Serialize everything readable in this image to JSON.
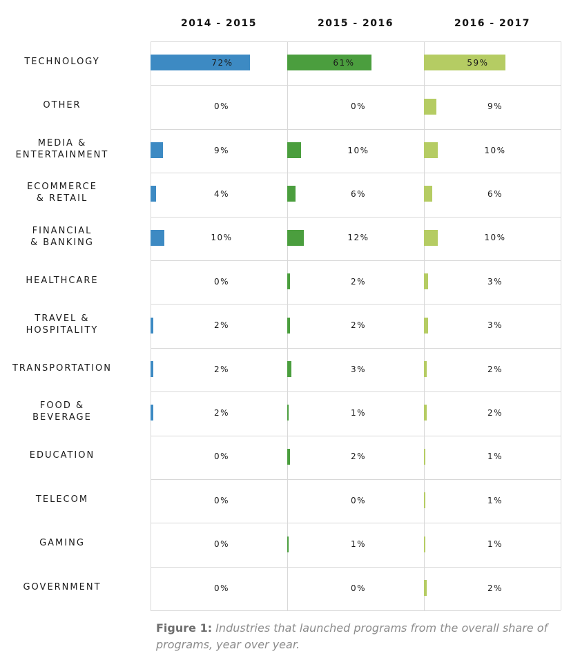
{
  "chart_data": {
    "type": "bar",
    "title": "",
    "series": [
      {
        "name": "2014 - 2015",
        "color": "#3d8ac3",
        "values": [
          72,
          0,
          9,
          4,
          10,
          0,
          2,
          2,
          2,
          0,
          0,
          0,
          0
        ],
        "labels": [
          "72%",
          "0%",
          "9%",
          "4%",
          "10%",
          "0%",
          "2%",
          "2%",
          "2%",
          "0%",
          "0%",
          "0%",
          "0%"
        ]
      },
      {
        "name": "2015 - 2016",
        "color": "#4b9e3e",
        "values": [
          61,
          0,
          10,
          6,
          12,
          2,
          2,
          3,
          1,
          2,
          0,
          1,
          0
        ],
        "labels": [
          "61%",
          "0%",
          "10%",
          "6%",
          "12%",
          "2%",
          "2%",
          "3%",
          "1%",
          "2%",
          "0%",
          "1%",
          "0%"
        ]
      },
      {
        "name": "2016 - 2017",
        "color": "#b5cc63",
        "values": [
          59,
          9,
          10,
          6,
          10,
          3,
          3,
          2,
          2,
          1,
          1,
          1,
          2
        ],
        "labels": [
          "59%",
          "9%",
          "10%",
          "6%",
          "10%",
          "3%",
          "3%",
          "2%",
          "2%",
          "1%",
          "1%",
          "1%",
          "2%"
        ]
      }
    ],
    "categories": [
      [
        "TECHNOLOGY"
      ],
      [
        "OTHER"
      ],
      [
        "MEDIA &",
        "ENTERTAINMENT"
      ],
      [
        "ECOMMERCE",
        "& RETAIL"
      ],
      [
        "FINANCIAL",
        "& BANKING"
      ],
      [
        "HEALTHCARE"
      ],
      [
        "TRAVEL &",
        "HOSPITALITY"
      ],
      [
        "TRANSPORTATION"
      ],
      [
        "FOOD &",
        "BEVERAGE"
      ],
      [
        "EDUCATION"
      ],
      [
        "TELECOM"
      ],
      [
        "GAMING"
      ],
      [
        "GOVERNMENT"
      ]
    ],
    "xlim": [
      0,
      100
    ]
  },
  "caption": {
    "label": "Figure 1:",
    "text": "Industries that launched programs from the overall share of programs, year over year."
  }
}
